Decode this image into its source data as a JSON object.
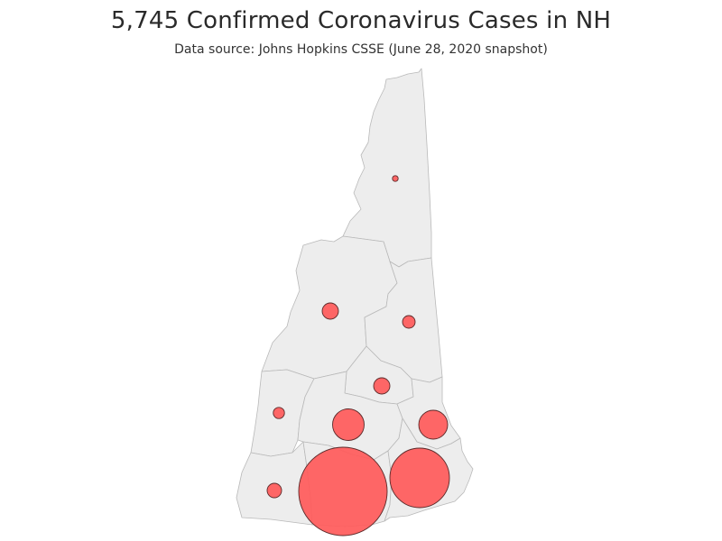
{
  "title": "5,745 Confirmed Coronavirus Cases in NH",
  "subtitle": "Data source: Johns Hopkins CSSE (June 28, 2020 snapshot)",
  "colors": {
    "land": "#ededed",
    "border": "#b9b9b9",
    "bubble_fill": "#ff5a5a",
    "bubble_stroke": "#5a2a2a"
  },
  "map": {
    "region": "New Hampshire",
    "subdivision": "county",
    "symbol": "proportional circle",
    "bubbles": [
      {
        "county": "Coos"
      },
      {
        "county": "Grafton"
      },
      {
        "county": "Carroll"
      },
      {
        "county": "Belknap"
      },
      {
        "county": "Sullivan"
      },
      {
        "county": "Merrimack"
      },
      {
        "county": "Strafford"
      },
      {
        "county": "Cheshire"
      },
      {
        "county": "Hillsborough"
      },
      {
        "county": "Rockingham"
      }
    ]
  }
}
